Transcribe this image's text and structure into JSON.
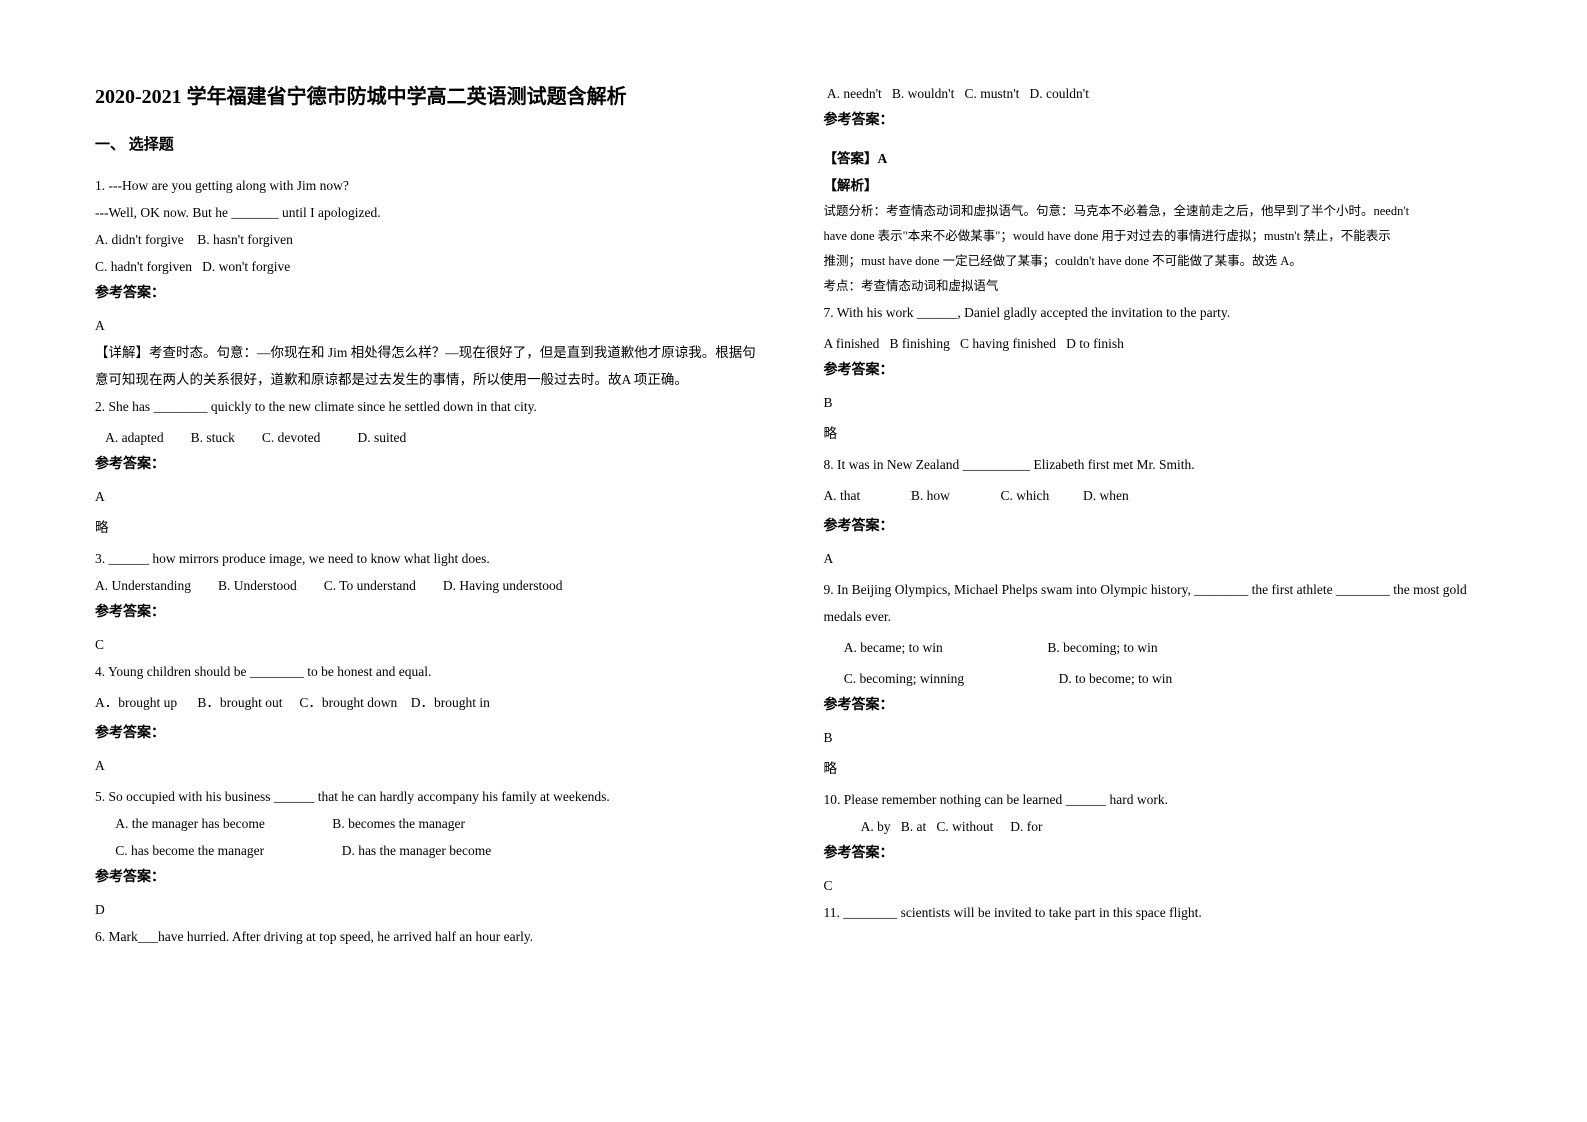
{
  "title": "2020-2021 学年福建省宁德市防城中学高二英语测试题含解析",
  "sectionHeader": "一、 选择题",
  "left": {
    "q1": {
      "l1": "1. ---How are you getting along with Jim now?",
      "l2": "---Well, OK now. But he _______ until I apologized.",
      "optA": "A. didn't forgive    B. hasn't forgiven",
      "optC": "C. hadn't forgiven   D. won't forgive",
      "ansLabel": "参考答案：",
      "ans": "A",
      "detail": "【详解】考查时态。句意：—你现在和 Jim 相处得怎么样？—现在很好了，但是直到我道歉他才原谅我。根据句意可知现在两人的关系很好，道歉和原谅都是过去发生的事情，所以使用一般过去时。故A 项正确。"
    },
    "q2": {
      "l1": "2. She has ________ quickly to the new climate since he settled down in that city.",
      "opts": "   A. adapted        B. stuck        C. devoted           D. suited",
      "ansLabel": "参考答案：",
      "ans": "A",
      "brief": "略"
    },
    "q3": {
      "l1": "3. ______ how mirrors produce image, we need to know what light does.",
      "opts": "A. Understanding        B. Understood        C. To understand        D. Having understood",
      "ansLabel": "参考答案：",
      "ans": "C"
    },
    "q4": {
      "l1": "4. Young children should be ________ to be honest and equal.",
      "opts": "A．brought up      B．brought out     C．brought down    D．brought in",
      "ansLabel": "参考答案：",
      "ans": "A"
    },
    "q5": {
      "l1": "5. So occupied with his business ______ that he can hardly accompany his family at weekends.",
      "optA": "      A. the manager has become                    B. becomes the manager",
      "optC": "      C. has become the manager                       D. has the manager become",
      "ansLabel": "参考答案：",
      "ans": "D"
    },
    "q6": {
      "l1": "6. Mark___have hurried. After driving at top speed, he arrived half an hour early."
    }
  },
  "right": {
    "q6cont": {
      "opts": " A. needn't   B. wouldn't   C. mustn't   D. couldn't",
      "ansLabel": "参考答案：",
      "ansTag": "【答案】A",
      "explTag": "【解析】",
      "expl1": "试题分析：考查情态动词和虚拟语气。句意：马克本不必着急，全速前走之后，他早到了半个小时。needn't",
      "expl2": "have done 表示\"本来不必做某事\"；would have done 用于对过去的事情进行虚拟；mustn't 禁止，不能表示",
      "expl3": "推测；must have done 一定已经做了某事；couldn't have done 不可能做了某事。故选 A。",
      "expl4": "考点：考查情态动词和虚拟语气"
    },
    "q7": {
      "l1": "7. With his work ______, Daniel gladly accepted the invitation to the party.",
      "opts": "A finished   B finishing   C having finished   D to finish",
      "ansLabel": "参考答案：",
      "ans": "B",
      "brief": "略"
    },
    "q8": {
      "l1": "8. It was in New Zealand __________ Elizabeth first met Mr. Smith.",
      "opts": "A. that               B. how               C. which          D. when",
      "ansLabel": "参考答案：",
      "ans": "A"
    },
    "q9": {
      "l1": "9. In Beijing Olympics, Michael Phelps swam into Olympic history, ________ the first athlete ________ the most gold medals ever.",
      "optA": "      A. became; to win                               B. becoming; to win",
      "optC": "      C. becoming; winning                            D. to become; to win",
      "ansLabel": "参考答案：",
      "ans": "B",
      "brief": "略"
    },
    "q10": {
      "l1": "10. Please remember nothing can be learned ______ hard work.",
      "opts": "           A. by   B. at   C. without     D. for",
      "ansLabel": "参考答案：",
      "ans": "C"
    },
    "q11": {
      "l1": "11. ________ scientists will be invited to take part in this space flight."
    }
  }
}
